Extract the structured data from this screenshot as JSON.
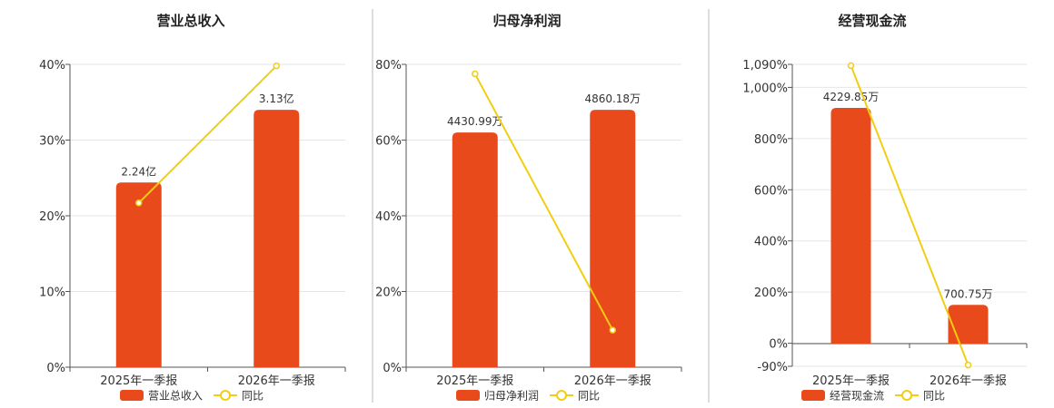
{
  "legend_line_label": "同比",
  "colors": {
    "bar": "#E84A1B",
    "line": "#F2CE12",
    "marker_fill": "#ffffff"
  },
  "chart_data": [
    {
      "type": "bar",
      "title": "营业总收入",
      "categories": [
        "2025年一季报",
        "2026年一季报"
      ],
      "series": [
        {
          "name": "营业总收入",
          "type": "bar",
          "values": [
            24.4,
            34.0
          ],
          "labels": [
            "2.24亿",
            "3.13亿"
          ]
        },
        {
          "name": "同比",
          "type": "line",
          "values": [
            21.7,
            39.8
          ]
        }
      ],
      "y_ticks": [
        0,
        10,
        20,
        30,
        40
      ],
      "y_tick_labels": [
        "0%",
        "10%",
        "20%",
        "30%",
        "40%"
      ],
      "ylim": [
        0,
        40
      ],
      "legend": "bottom"
    },
    {
      "type": "bar",
      "title": "归母净利润",
      "categories": [
        "2025年一季报",
        "2026年一季报"
      ],
      "series": [
        {
          "name": "归母净利润",
          "type": "bar",
          "values": [
            62.0,
            68.0
          ],
          "labels": [
            "4430.99万",
            "4860.18万"
          ]
        },
        {
          "name": "同比",
          "type": "line",
          "values": [
            77.5,
            9.8
          ]
        }
      ],
      "y_ticks": [
        0,
        20,
        40,
        60,
        80
      ],
      "y_tick_labels": [
        "0%",
        "20%",
        "40%",
        "60%",
        "80%"
      ],
      "ylim": [
        0,
        80
      ],
      "legend": "bottom"
    },
    {
      "type": "bar",
      "title": "经营现金流",
      "categories": [
        "2025年一季报",
        "2026年一季报"
      ],
      "series": [
        {
          "name": "经营现金流",
          "type": "bar",
          "values": [
            920,
            150
          ],
          "labels": [
            "4229.85万",
            "700.75万"
          ]
        },
        {
          "name": "同比",
          "type": "line",
          "values": [
            1085,
            -85
          ]
        }
      ],
      "y_ticks": [
        -90,
        0,
        200,
        400,
        600,
        800,
        1000,
        1090
      ],
      "y_tick_labels": [
        "-90%",
        "0%",
        "200%",
        "400%",
        "600%",
        "800%",
        "1,000%",
        "1,090%"
      ],
      "ylim": [
        -90,
        1090
      ],
      "legend": "bottom"
    }
  ]
}
